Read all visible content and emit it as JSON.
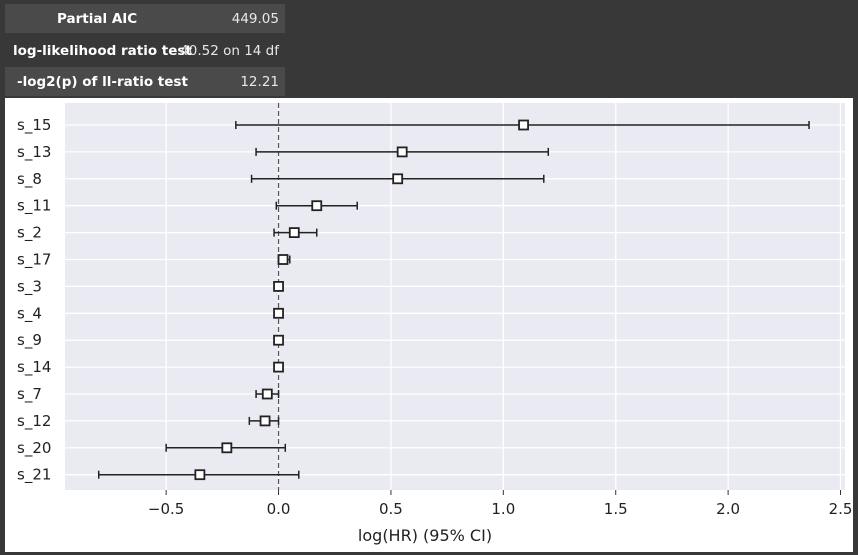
{
  "summary": {
    "partial_aic_label": "Partial AIC",
    "partial_aic_value": "449.05",
    "llr_label": "log-likelihood ratio test",
    "llr_value": "40.52 on 14 df",
    "log2p_label": "-log2(p) of ll-ratio test",
    "log2p_value": "12.21"
  },
  "chart_data": {
    "type": "forest",
    "xlabel": "log(HR) (95% CI)",
    "xlim": [
      -0.95,
      2.52
    ],
    "xticks": [
      -0.5,
      0.0,
      0.5,
      1.0,
      1.5,
      2.0,
      2.5
    ],
    "xtick_labels": [
      "−0.5",
      "0.0",
      "0.5",
      "1.0",
      "1.5",
      "2.0",
      "2.5"
    ],
    "reference_line": 0.0,
    "grid": true,
    "colors": {
      "background": "#eaeaf2",
      "grid": "#ffffff",
      "marker_edge": "#222222",
      "marker_face": "#ffffff"
    },
    "covariates": [
      {
        "name": "s_15",
        "coef": 1.09,
        "lower": -0.19,
        "upper": 2.36
      },
      {
        "name": "s_13",
        "coef": 0.55,
        "lower": -0.1,
        "upper": 1.2
      },
      {
        "name": "s_8",
        "coef": 0.53,
        "lower": -0.12,
        "upper": 1.18
      },
      {
        "name": "s_11",
        "coef": 0.17,
        "lower": -0.01,
        "upper": 0.35
      },
      {
        "name": "s_2",
        "coef": 0.07,
        "lower": -0.02,
        "upper": 0.17
      },
      {
        "name": "s_17",
        "coef": 0.02,
        "lower": 0.0,
        "upper": 0.05
      },
      {
        "name": "s_3",
        "coef": 0.0,
        "lower": -0.01,
        "upper": 0.01
      },
      {
        "name": "s_4",
        "coef": 0.0,
        "lower": -0.01,
        "upper": 0.01
      },
      {
        "name": "s_9",
        "coef": 0.0,
        "lower": -0.01,
        "upper": 0.01
      },
      {
        "name": "s_14",
        "coef": 0.0,
        "lower": -0.01,
        "upper": 0.01
      },
      {
        "name": "s_7",
        "coef": -0.05,
        "lower": -0.1,
        "upper": 0.0
      },
      {
        "name": "s_12",
        "coef": -0.06,
        "lower": -0.13,
        "upper": 0.0
      },
      {
        "name": "s_20",
        "coef": -0.23,
        "lower": -0.5,
        "upper": 0.03
      },
      {
        "name": "s_21",
        "coef": -0.35,
        "lower": -0.8,
        "upper": 0.09
      }
    ]
  }
}
